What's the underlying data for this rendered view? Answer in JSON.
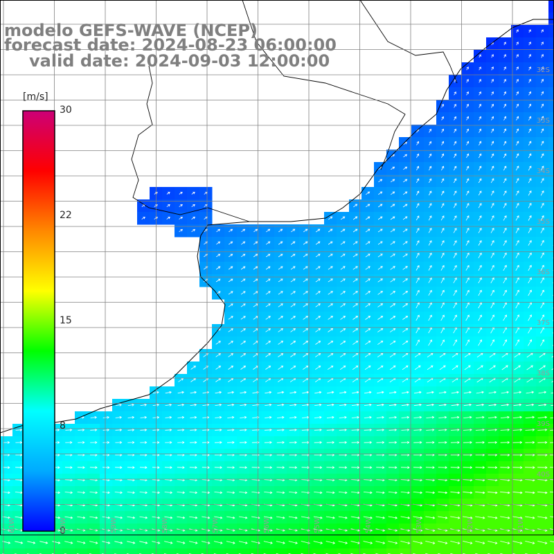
{
  "title": {
    "line1": "modelo GEFS-WAVE (NCEP)",
    "line2": "forecast date: 2024-08-23 06:00:00",
    "line3": "valid date: 2024-09-03 12:00:00"
  },
  "colorbar": {
    "unit": "[m/s]",
    "ticks": [
      "30",
      "22",
      "15",
      "8",
      "0"
    ],
    "tick_values": [
      30,
      22,
      15,
      8,
      0
    ],
    "range": [
      0,
      30
    ],
    "colors": [
      "#0000ff",
      "#00aaff",
      "#00ffff",
      "#00ff00",
      "#ffff00",
      "#ff8800",
      "#ff0000",
      "#cc0077"
    ]
  },
  "map": {
    "land_color": "#ffffff",
    "grid_color": "#808080",
    "lat_labels": [
      "32S",
      "33S",
      "34S",
      "35S",
      "36S",
      "37S",
      "38S",
      "39S",
      "40S"
    ],
    "lon_labels": [
      "61W",
      "60W",
      "59W",
      "58W",
      "57W",
      "56W",
      "55W",
      "54W",
      "53W",
      "52W",
      "51W"
    ],
    "wind_direction": "northeast-to-east (onshore/along-shore)",
    "max_speed_region": "south-east",
    "min_speed_region": "Rio de la Plata estuary"
  }
}
